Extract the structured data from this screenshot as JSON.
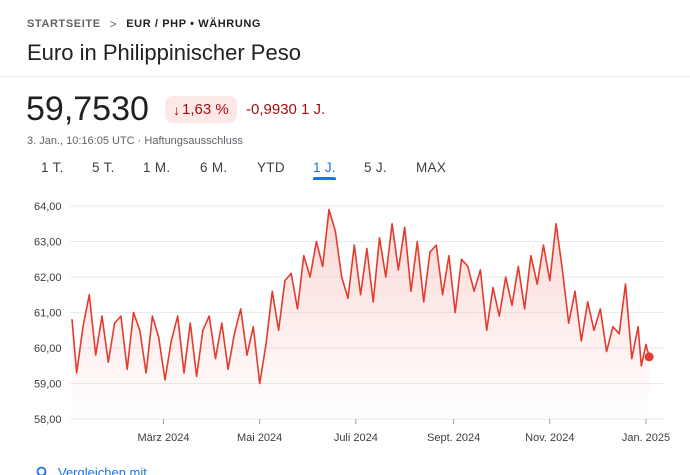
{
  "breadcrumb": {
    "home": "STARTSEITE",
    "separator": ">",
    "current": "EUR / PHP • WÄHRUNG"
  },
  "title": "Euro in Philippinischer Peso",
  "quote": {
    "price": "59,7530",
    "change_percent": "1,63 %",
    "change_direction": "down",
    "change_abs": "-0,9930 1 J.",
    "timestamp": "3. Jan., 10:16:05 UTC · Haftungsausschluss"
  },
  "ranges": [
    {
      "label": "1 T.",
      "active": false
    },
    {
      "label": "5 T.",
      "active": false
    },
    {
      "label": "1 M.",
      "active": false
    },
    {
      "label": "6 M.",
      "active": false
    },
    {
      "label": "YTD",
      "active": false
    },
    {
      "label": "1 J.",
      "active": true
    },
    {
      "label": "5 J.",
      "active": false
    },
    {
      "label": "MAX",
      "active": false
    }
  ],
  "compare": {
    "label": "Vergleichen mit"
  },
  "colors": {
    "line": "#e53a2f",
    "fill_top": "#f6b8b2",
    "negative_text": "#a50e0e",
    "negative_bg": "#fce8e6",
    "accent": "#1a73e8",
    "grid": "#e8eaed"
  },
  "chart_data": {
    "type": "line",
    "title": "",
    "xlabel": "",
    "ylabel": "",
    "ylim": [
      58,
      64
    ],
    "y_ticks": [
      "58,00",
      "59,00",
      "60,00",
      "61,00",
      "62,00",
      "63,00",
      "64,00"
    ],
    "x_ticks": [
      {
        "label": "März 2024",
        "date": "2024-03-01"
      },
      {
        "label": "Mai 2024",
        "date": "2024-05-01"
      },
      {
        "label": "Juli 2024",
        "date": "2024-07-01"
      },
      {
        "label": "Sept. 2024",
        "date": "2024-09-01"
      },
      {
        "label": "Nov. 2024",
        "date": "2024-11-01"
      },
      {
        "label": "Jan. 2025",
        "date": "2025-01-01"
      }
    ],
    "grid": true,
    "series": [
      {
        "points": [
          [
            "2024-01-03",
            60.8
          ],
          [
            "2024-01-06",
            59.3
          ],
          [
            "2024-01-10",
            60.6
          ],
          [
            "2024-01-14",
            61.5
          ],
          [
            "2024-01-18",
            59.8
          ],
          [
            "2024-01-22",
            60.9
          ],
          [
            "2024-01-26",
            59.6
          ],
          [
            "2024-01-30",
            60.7
          ],
          [
            "2024-02-03",
            60.9
          ],
          [
            "2024-02-07",
            59.4
          ],
          [
            "2024-02-11",
            61.0
          ],
          [
            "2024-02-15",
            60.5
          ],
          [
            "2024-02-19",
            59.3
          ],
          [
            "2024-02-23",
            60.9
          ],
          [
            "2024-02-27",
            60.3
          ],
          [
            "2024-03-02",
            59.1
          ],
          [
            "2024-03-06",
            60.2
          ],
          [
            "2024-03-10",
            60.9
          ],
          [
            "2024-03-14",
            59.3
          ],
          [
            "2024-03-18",
            60.7
          ],
          [
            "2024-03-22",
            59.2
          ],
          [
            "2024-03-26",
            60.5
          ],
          [
            "2024-03-30",
            60.9
          ],
          [
            "2024-04-03",
            59.7
          ],
          [
            "2024-04-07",
            60.7
          ],
          [
            "2024-04-11",
            59.4
          ],
          [
            "2024-04-15",
            60.4
          ],
          [
            "2024-04-19",
            61.1
          ],
          [
            "2024-04-23",
            59.8
          ],
          [
            "2024-04-27",
            60.6
          ],
          [
            "2024-05-01",
            59.0
          ],
          [
            "2024-05-05",
            60.1
          ],
          [
            "2024-05-09",
            61.6
          ],
          [
            "2024-05-13",
            60.5
          ],
          [
            "2024-05-17",
            61.9
          ],
          [
            "2024-05-21",
            62.1
          ],
          [
            "2024-05-25",
            61.1
          ],
          [
            "2024-05-29",
            62.6
          ],
          [
            "2024-06-02",
            62.0
          ],
          [
            "2024-06-06",
            63.0
          ],
          [
            "2024-06-10",
            62.3
          ],
          [
            "2024-06-14",
            63.9
          ],
          [
            "2024-06-18",
            63.3
          ],
          [
            "2024-06-22",
            62.0
          ],
          [
            "2024-06-26",
            61.4
          ],
          [
            "2024-06-30",
            62.9
          ],
          [
            "2024-07-04",
            61.5
          ],
          [
            "2024-07-08",
            62.8
          ],
          [
            "2024-07-12",
            61.3
          ],
          [
            "2024-07-16",
            63.1
          ],
          [
            "2024-07-20",
            62.0
          ],
          [
            "2024-07-24",
            63.5
          ],
          [
            "2024-07-28",
            62.2
          ],
          [
            "2024-08-01",
            63.4
          ],
          [
            "2024-08-05",
            61.6
          ],
          [
            "2024-08-09",
            63.0
          ],
          [
            "2024-08-13",
            61.3
          ],
          [
            "2024-08-17",
            62.7
          ],
          [
            "2024-08-21",
            62.9
          ],
          [
            "2024-08-25",
            61.5
          ],
          [
            "2024-08-29",
            62.6
          ],
          [
            "2024-09-02",
            61.0
          ],
          [
            "2024-09-06",
            62.5
          ],
          [
            "2024-09-10",
            62.3
          ],
          [
            "2024-09-14",
            61.6
          ],
          [
            "2024-09-18",
            62.2
          ],
          [
            "2024-09-22",
            60.5
          ],
          [
            "2024-09-26",
            61.7
          ],
          [
            "2024-09-30",
            60.9
          ],
          [
            "2024-10-04",
            62.0
          ],
          [
            "2024-10-08",
            61.2
          ],
          [
            "2024-10-12",
            62.3
          ],
          [
            "2024-10-16",
            61.1
          ],
          [
            "2024-10-20",
            62.6
          ],
          [
            "2024-10-24",
            61.8
          ],
          [
            "2024-10-28",
            62.9
          ],
          [
            "2024-11-01",
            61.9
          ],
          [
            "2024-11-05",
            63.5
          ],
          [
            "2024-11-09",
            62.2
          ],
          [
            "2024-11-13",
            60.7
          ],
          [
            "2024-11-17",
            61.6
          ],
          [
            "2024-11-21",
            60.2
          ],
          [
            "2024-11-25",
            61.3
          ],
          [
            "2024-11-29",
            60.5
          ],
          [
            "2024-12-03",
            61.1
          ],
          [
            "2024-12-07",
            59.9
          ],
          [
            "2024-12-11",
            60.6
          ],
          [
            "2024-12-15",
            60.4
          ],
          [
            "2024-12-19",
            61.8
          ],
          [
            "2024-12-23",
            59.7
          ],
          [
            "2024-12-27",
            60.6
          ],
          [
            "2024-12-29",
            59.5
          ],
          [
            "2025-01-01",
            60.1
          ],
          [
            "2025-01-03",
            59.75
          ]
        ]
      }
    ],
    "last_point_marker": true
  }
}
